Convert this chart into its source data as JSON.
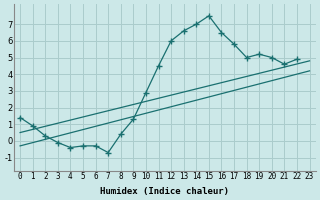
{
  "xlabel": "Humidex (Indice chaleur)",
  "bg_color": "#cce8e8",
  "grid_color": "#aacccc",
  "line_color": "#1a7070",
  "xlim": [
    -0.5,
    23.5
  ],
  "ylim": [
    -1.8,
    8.2
  ],
  "xticks": [
    0,
    1,
    2,
    3,
    4,
    5,
    6,
    7,
    8,
    9,
    10,
    11,
    12,
    13,
    14,
    15,
    16,
    17,
    18,
    19,
    20,
    21,
    22,
    23
  ],
  "yticks": [
    -1,
    0,
    1,
    2,
    3,
    4,
    5,
    6,
    7
  ],
  "curve_x": [
    0,
    1,
    2,
    3,
    4,
    5,
    6,
    7,
    8,
    9,
    10,
    11,
    12,
    13,
    14,
    15,
    16,
    17,
    18,
    19,
    20,
    21,
    22
  ],
  "curve_y": [
    1.4,
    0.9,
    0.3,
    -0.1,
    -0.4,
    -0.3,
    -0.3,
    -0.7,
    0.4,
    1.3,
    2.9,
    4.5,
    6.0,
    6.6,
    7.0,
    7.5,
    6.5,
    5.8,
    5.0,
    5.2,
    5.0,
    4.6,
    4.9
  ],
  "line1_x": [
    0,
    23
  ],
  "line1_y": [
    0.5,
    4.8
  ],
  "line2_x": [
    0,
    23
  ],
  "line2_y": [
    -0.3,
    4.2
  ]
}
